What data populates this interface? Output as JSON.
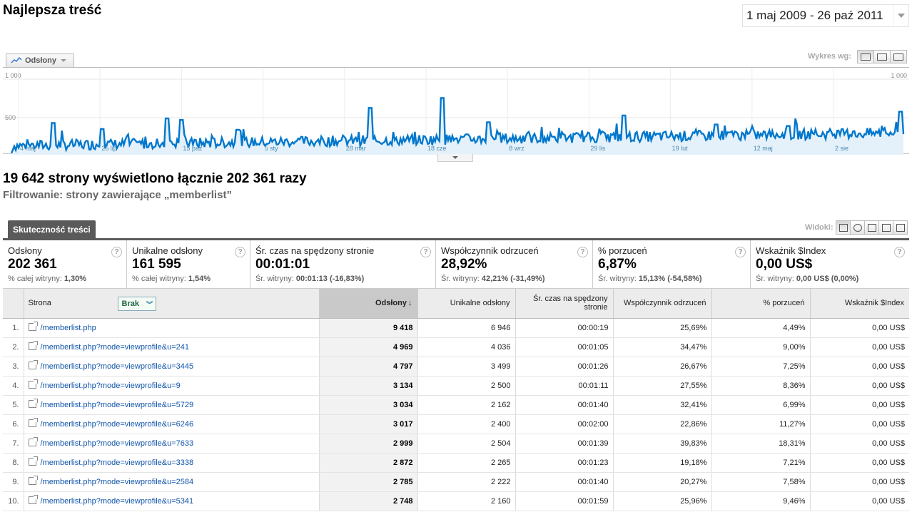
{
  "header": {
    "title": "Najlepsza treść",
    "date_range": "1 maj 2009 - 26 paź 2011"
  },
  "graph": {
    "metric_label": "Odsłony",
    "graph_by_label": "Wykres wg:",
    "y_top_label": "1 000",
    "y_mid_label": "500",
    "y_top_right_label": "1 000",
    "x_labels": [
      "4 maj",
      "25 lip",
      "15 paź",
      "5 sty",
      "28 mar",
      "18 cze",
      "8 wrz",
      "29 lis",
      "19 lut",
      "12 maj",
      "2 sie"
    ],
    "line_color": "#0077cc",
    "fill_color": "#e5f1fa"
  },
  "summary": {
    "headline": "19 642 strony wyświetlono łącznie 202 361 razy",
    "filter": "Filtrowanie: strony zawierające „memberlist”"
  },
  "tabs": {
    "performance": "Skuteczność treści",
    "views_label": "Widoki:"
  },
  "scorecards": [
    {
      "label": "Odsłony",
      "value": "202 361",
      "sub_prefix": "% całej witryny: ",
      "sub_value": "1,30%",
      "sub_delta": ""
    },
    {
      "label": "Unikalne odsłony",
      "value": "161 595",
      "sub_prefix": "% całej witryny: ",
      "sub_value": "1,54%",
      "sub_delta": ""
    },
    {
      "label": "Śr. czas na spędzony stronie",
      "value": "00:01:01",
      "sub_prefix": "Śr. witryny: ",
      "sub_value": "00:01:13",
      "sub_delta": "(-16,83%)"
    },
    {
      "label": "Współczynnik odrzuceń",
      "value": "28,92%",
      "sub_prefix": "Śr. witryny: ",
      "sub_value": "42,21%",
      "sub_delta": "(-31,49%)"
    },
    {
      "label": "% porzuceń",
      "value": "6,87%",
      "sub_prefix": "Śr. witryny: ",
      "sub_value": "15,13%",
      "sub_delta": "(-54,58%)"
    },
    {
      "label": "Wskaźnik $Index",
      "value": "0,00 US$",
      "sub_prefix": "Śr. witryny: ",
      "sub_value": "0,00 US$",
      "sub_delta": "(0,00%)"
    }
  ],
  "table": {
    "headers": {
      "page": "Strona",
      "secondary": "Brak",
      "pageviews": "Odsłony",
      "unique": "Unikalne odsłony",
      "avg_time": "Śr. czas na spędzony stronie",
      "bounce": "Współczynnik odrzuceń",
      "exit": "% porzuceń",
      "index": "Wskaźnik $Index"
    },
    "rows": [
      {
        "n": "1.",
        "page": "/memberlist.php",
        "pv": "9 418",
        "upv": "6 946",
        "time": "00:00:19",
        "bounce": "25,69%",
        "exit": "4,49%",
        "index": "0,00 US$"
      },
      {
        "n": "2.",
        "page": "/memberlist.php?mode=viewprofile&u=241",
        "pv": "4 969",
        "upv": "4 036",
        "time": "00:01:05",
        "bounce": "34,47%",
        "exit": "9,00%",
        "index": "0,00 US$"
      },
      {
        "n": "3.",
        "page": "/memberlist.php?mode=viewprofile&u=3445",
        "pv": "4 797",
        "upv": "3 499",
        "time": "00:01:26",
        "bounce": "26,67%",
        "exit": "7,25%",
        "index": "0,00 US$"
      },
      {
        "n": "4.",
        "page": "/memberlist.php?mode=viewprofile&u=9",
        "pv": "3 134",
        "upv": "2 500",
        "time": "00:01:11",
        "bounce": "27,55%",
        "exit": "8,36%",
        "index": "0,00 US$"
      },
      {
        "n": "5.",
        "page": "/memberlist.php?mode=viewprofile&u=5729",
        "pv": "3 034",
        "upv": "2 162",
        "time": "00:01:40",
        "bounce": "32,41%",
        "exit": "6,99%",
        "index": "0,00 US$"
      },
      {
        "n": "6.",
        "page": "/memberlist.php?mode=viewprofile&u=6246",
        "pv": "3 017",
        "upv": "2 400",
        "time": "00:02:00",
        "bounce": "22,86%",
        "exit": "11,27%",
        "index": "0,00 US$"
      },
      {
        "n": "7.",
        "page": "/memberlist.php?mode=viewprofile&u=7633",
        "pv": "2 999",
        "upv": "2 504",
        "time": "00:01:39",
        "bounce": "39,83%",
        "exit": "18,31%",
        "index": "0,00 US$"
      },
      {
        "n": "8.",
        "page": "/memberlist.php?mode=viewprofile&u=3338",
        "pv": "2 872",
        "upv": "2 265",
        "time": "00:01:23",
        "bounce": "19,18%",
        "exit": "7,21%",
        "index": "0,00 US$"
      },
      {
        "n": "9.",
        "page": "/memberlist.php?mode=viewprofile&u=2584",
        "pv": "2 785",
        "upv": "2 222",
        "time": "00:01:40",
        "bounce": "20,27%",
        "exit": "7,58%",
        "index": "0,00 US$"
      },
      {
        "n": "10.",
        "page": "/memberlist.php?mode=viewprofile&u=5341",
        "pv": "2 748",
        "upv": "2 160",
        "time": "00:01:59",
        "bounce": "25,96%",
        "exit": "9,46%",
        "index": "0,00 US$"
      }
    ]
  }
}
